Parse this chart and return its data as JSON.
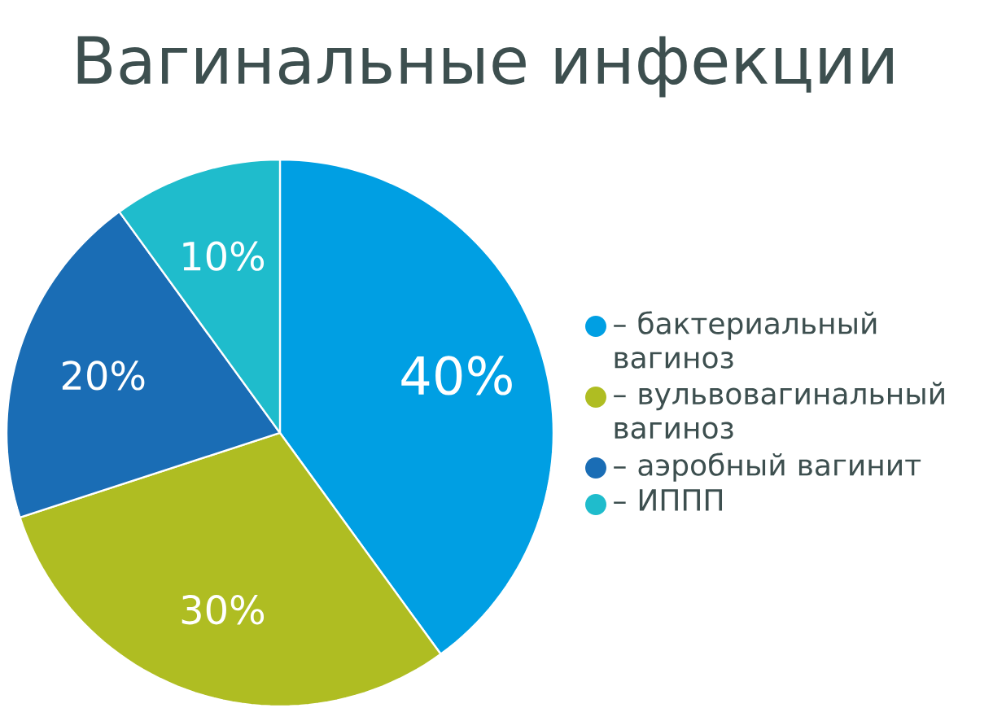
{
  "chart_data": {
    "type": "pie",
    "title": "Вагинальные инфекции",
    "categories": [
      "– бактериальный вагиноз",
      "– вульвовагинальный вагиноз",
      "– аэробный вагинит",
      "– ИППП"
    ],
    "values": [
      40,
      30,
      20,
      10
    ],
    "colors": [
      "#009fe3",
      "#afbd22",
      "#1a6db5",
      "#1fbccc"
    ],
    "value_labels": [
      "40%",
      "30%",
      "20%",
      "10%"
    ],
    "legend": "right"
  }
}
